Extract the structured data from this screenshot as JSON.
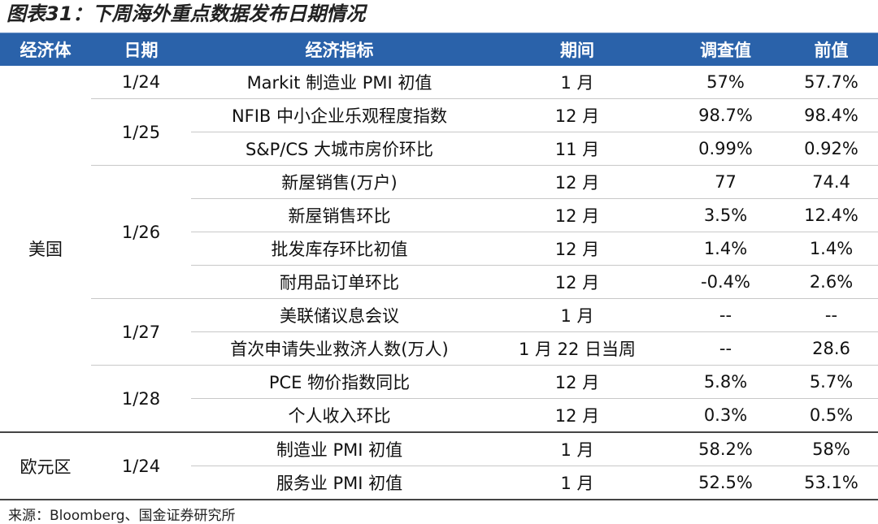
{
  "title": "图表31：下周海外重点数据发布日期情况",
  "table": {
    "header": [
      "经济体",
      "日期",
      "经济指标",
      "期间",
      "调查值",
      "前值"
    ],
    "groups": [
      {
        "region": "美国",
        "dates": [
          {
            "date": "1/24",
            "rows": [
              [
                "Markit 制造业 PMI 初值",
                "1 月",
                "57%",
                "57.7%"
              ]
            ]
          },
          {
            "date": "1/25",
            "rows": [
              [
                "NFIB 中小企业乐观程度指数",
                "12 月",
                "98.7%",
                "98.4%"
              ],
              [
                "S&P/CS 大城市房价环比",
                "11 月",
                "0.99%",
                "0.92%"
              ]
            ]
          },
          {
            "date": "1/26",
            "rows": [
              [
                "新屋销售(万户)",
                "12 月",
                "77",
                "74.4"
              ],
              [
                "新屋销售环比",
                "12 月",
                "3.5%",
                "12.4%"
              ],
              [
                "批发库存环比初值",
                "12 月",
                "1.4%",
                "1.4%"
              ],
              [
                "耐用品订单环比",
                "12 月",
                "-0.4%",
                "2.6%"
              ]
            ]
          },
          {
            "date": "1/27",
            "rows": [
              [
                "美联储议息会议",
                "1 月",
                "--",
                "--"
              ],
              [
                "首次申请失业救济人数(万人)",
                "1 月 22 日当周",
                "--",
                "28.6"
              ]
            ]
          },
          {
            "date": "1/28",
            "rows": [
              [
                "PCE 物价指数同比",
                "12 月",
                "5.8%",
                "5.7%"
              ],
              [
                "个人收入环比",
                "12 月",
                "0.3%",
                "0.5%"
              ]
            ]
          }
        ]
      },
      {
        "region": "欧元区",
        "dates": [
          {
            "date": "1/24",
            "rows": [
              [
                "制造业 PMI 初值",
                "1 月",
                "58.2%",
                "58%"
              ],
              [
                "服务业 PMI 初值",
                "1 月",
                "52.5%",
                "53.1%"
              ]
            ]
          }
        ]
      }
    ]
  },
  "source": "来源：Bloomberg、国金证券研究所"
}
